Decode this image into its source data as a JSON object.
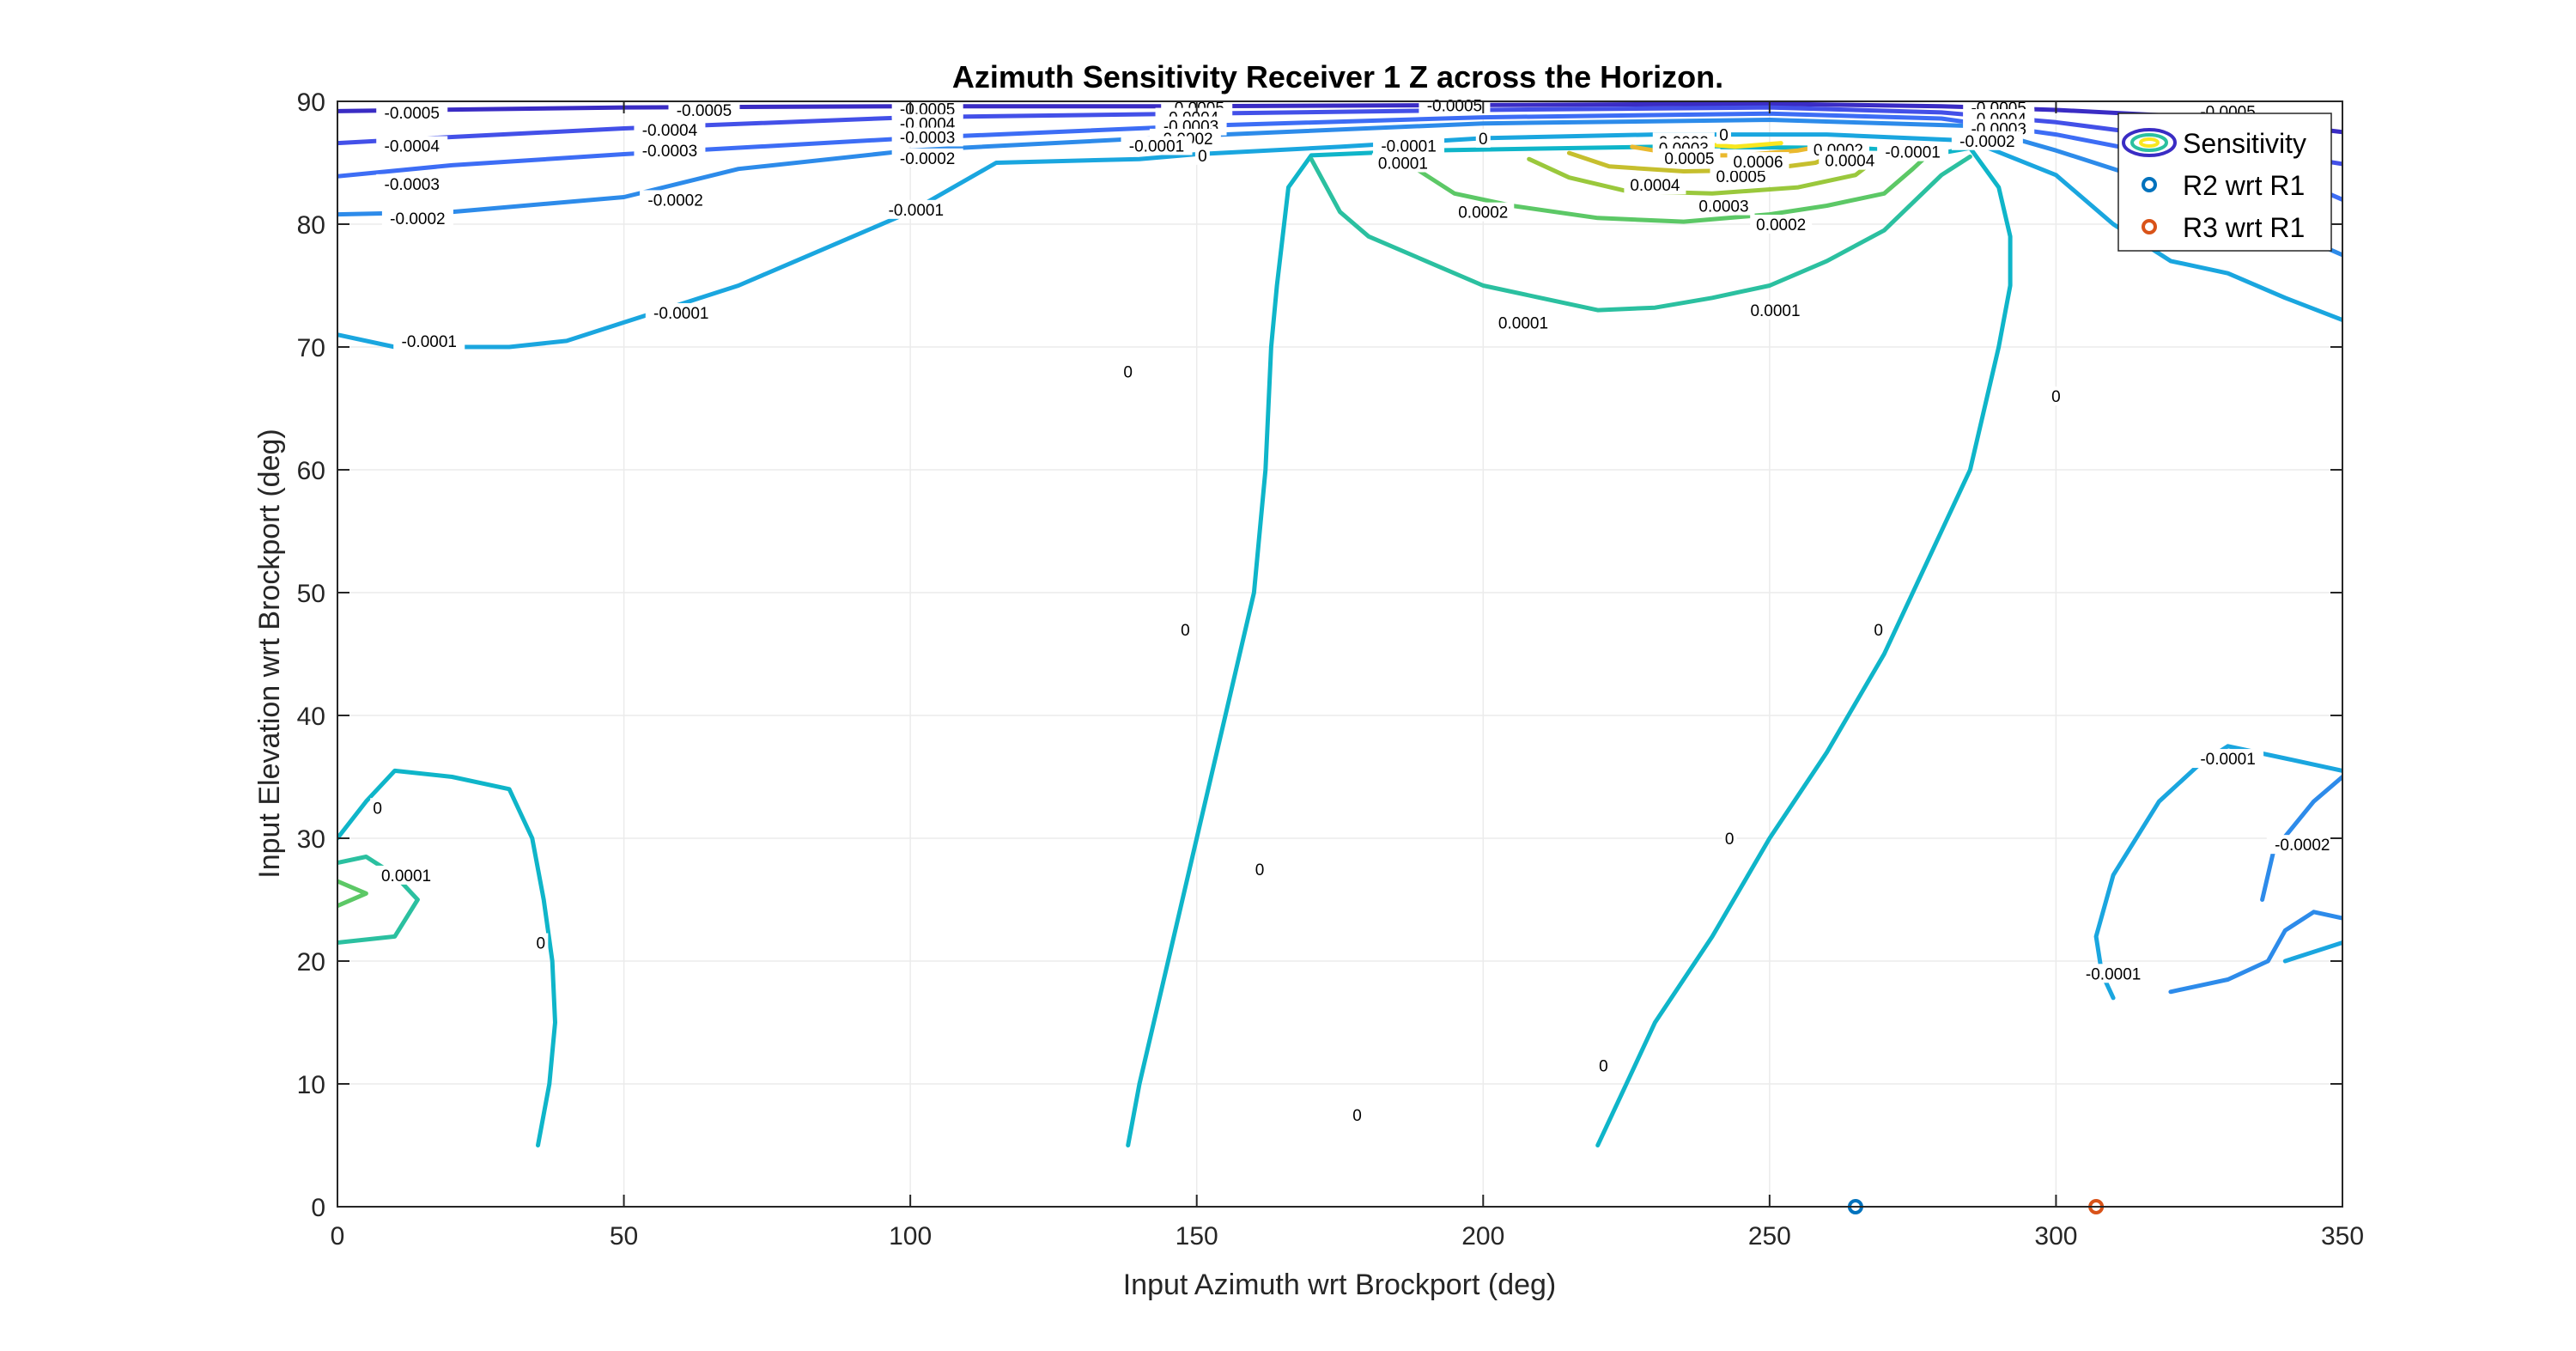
{
  "chart_data": {
    "type": "contour",
    "title": "Azimuth Sensitivity Receiver 1 Z across the Horizon.",
    "xlabel": "Input Azimuth wrt Brockport (deg)",
    "ylabel": "Input Elevation wrt Brockport (deg)",
    "xlim": [
      0,
      350
    ],
    "ylim": [
      0,
      90
    ],
    "xticks": [
      "0",
      "50",
      "100",
      "150",
      "200",
      "250",
      "300",
      "350"
    ],
    "yticks": [
      "0",
      "10",
      "20",
      "30",
      "40",
      "50",
      "60",
      "70",
      "80",
      "90"
    ],
    "grid": true,
    "legend_position": "top-right",
    "legend": [
      "Sensitivity",
      "R2 wrt R1",
      "R3 wrt R1"
    ],
    "colors": {
      "axis": "#262626",
      "grid": "#ebebeb",
      "level_-0.0005": "#3a2cc4",
      "level_-0.0004": "#4350e8",
      "level_-0.0003": "#3d6df5",
      "level_-0.0002": "#2d8bea",
      "level_-0.0001": "#1aa6df",
      "level_0": "#0fb5c9",
      "level_0.0001": "#2bc0a0",
      "level_0.0002": "#5cc866",
      "level_0.0003": "#9ac83c",
      "level_0.0004": "#c6bf2e",
      "level_0.0005": "#eab92e",
      "level_0.0006": "#f9e71f",
      "r2_marker": "#0072bd",
      "r3_marker": "#d95319"
    },
    "contours": [
      {
        "level": "-0.0005",
        "points": [
          [
            0,
            89.2
          ],
          [
            50,
            89.5
          ],
          [
            100,
            89.6
          ],
          [
            150,
            89.6
          ],
          [
            200,
            89.7
          ],
          [
            250,
            89.8
          ],
          [
            280,
            89.6
          ],
          [
            300,
            89.3
          ],
          [
            330,
            88.6
          ],
          [
            350,
            87.5
          ]
        ]
      },
      {
        "level": "-0.0004",
        "points": [
          [
            0,
            86.6
          ],
          [
            20,
            87.1
          ],
          [
            50,
            87.8
          ],
          [
            100,
            88.7
          ],
          [
            150,
            89.0
          ],
          [
            200,
            89.3
          ],
          [
            250,
            89.5
          ],
          [
            280,
            89.1
          ],
          [
            300,
            88.3
          ],
          [
            320,
            87.1
          ],
          [
            350,
            84.9
          ]
        ]
      },
      {
        "level": "-0.0003",
        "points": [
          [
            0,
            83.9
          ],
          [
            20,
            84.8
          ],
          [
            50,
            85.7
          ],
          [
            100,
            87.0
          ],
          [
            150,
            88.0
          ],
          [
            200,
            88.7
          ],
          [
            250,
            89.0
          ],
          [
            280,
            88.6
          ],
          [
            300,
            87.3
          ],
          [
            320,
            85.5
          ],
          [
            340,
            84.0
          ],
          [
            350,
            82.0
          ]
        ]
      },
      {
        "level": "-0.0002",
        "points": [
          [
            0,
            80.8
          ],
          [
            20,
            81.0
          ],
          [
            50,
            82.2
          ],
          [
            70,
            84.5
          ],
          [
            100,
            86.0
          ],
          [
            150,
            87.2
          ],
          [
            200,
            88.2
          ],
          [
            250,
            88.5
          ],
          [
            285,
            88.0
          ],
          [
            300,
            86.0
          ],
          [
            320,
            83.0
          ],
          [
            340,
            79.5
          ],
          [
            350,
            77.5
          ]
        ]
      },
      {
        "level": "-0.0001",
        "points": [
          [
            0,
            71.0
          ],
          [
            10,
            70.0
          ],
          [
            30,
            70.0
          ],
          [
            40,
            70.5
          ],
          [
            50,
            72.0
          ],
          [
            70,
            75.0
          ],
          [
            80,
            77.0
          ],
          [
            100,
            81.0
          ],
          [
            115,
            85.0
          ],
          [
            140,
            85.3
          ],
          [
            150,
            85.7
          ],
          [
            175,
            86.3
          ],
          [
            200,
            87.0
          ],
          [
            230,
            87.3
          ],
          [
            260,
            87.3
          ],
          [
            285,
            86.8
          ],
          [
            300,
            84.0
          ],
          [
            310,
            80.0
          ],
          [
            320,
            77.0
          ],
          [
            330,
            76.0
          ],
          [
            340,
            74.0
          ],
          [
            350,
            72.2
          ]
        ]
      },
      {
        "level": "0",
        "points": [
          [
            138,
            5
          ],
          [
            140,
            10
          ],
          [
            145,
            20
          ],
          [
            150,
            30
          ],
          [
            155,
            40
          ],
          [
            160,
            50
          ],
          [
            162,
            60
          ],
          [
            163,
            70
          ],
          [
            164,
            75
          ],
          [
            166,
            83
          ],
          [
            170,
            85.6
          ],
          [
            190,
            86.0
          ],
          [
            230,
            86.3
          ],
          [
            265,
            86.2
          ],
          [
            280,
            85.8
          ],
          [
            285,
            86.2
          ],
          [
            290,
            83
          ],
          [
            292,
            79
          ],
          [
            292,
            75
          ],
          [
            290,
            70
          ],
          [
            285,
            60
          ],
          [
            280,
            55
          ],
          [
            270,
            45
          ],
          [
            260,
            37
          ],
          [
            250,
            30
          ],
          [
            240,
            22
          ],
          [
            230,
            15
          ],
          [
            225,
            10
          ],
          [
            220,
            5
          ]
        ]
      },
      {
        "level": "0.0001",
        "points": [
          [
            170,
            85.3
          ],
          [
            175,
            81
          ],
          [
            180,
            79
          ],
          [
            190,
            77
          ],
          [
            200,
            75
          ],
          [
            210,
            74
          ],
          [
            220,
            73
          ],
          [
            230,
            73.2
          ],
          [
            240,
            74
          ],
          [
            250,
            75
          ],
          [
            260,
            77
          ],
          [
            270,
            79.5
          ],
          [
            280,
            84
          ],
          [
            285,
            85.5
          ]
        ]
      },
      {
        "level": "0.0002",
        "points": [
          [
            185,
            85.5
          ],
          [
            195,
            82.5
          ],
          [
            205,
            81.5
          ],
          [
            220,
            80.5
          ],
          [
            235,
            80.2
          ],
          [
            250,
            80.8
          ],
          [
            260,
            81.5
          ],
          [
            270,
            82.5
          ],
          [
            275,
            84.5
          ],
          [
            278,
            85.8
          ]
        ]
      },
      {
        "level": "0.0003",
        "points": [
          [
            208,
            85.3
          ],
          [
            215,
            83.8
          ],
          [
            225,
            82.7
          ],
          [
            240,
            82.5
          ],
          [
            255,
            83.0
          ],
          [
            265,
            84.0
          ],
          [
            270,
            85.8
          ]
        ]
      },
      {
        "level": "0.0004",
        "points": [
          [
            215,
            85.8
          ],
          [
            222,
            84.7
          ],
          [
            235,
            84.3
          ],
          [
            248,
            84.4
          ],
          [
            258,
            85.0
          ],
          [
            265,
            86.3
          ]
        ]
      },
      {
        "level": "0.0005",
        "points": [
          [
            226,
            86.3
          ],
          [
            235,
            85.6
          ],
          [
            245,
            85.6
          ],
          [
            255,
            86.0
          ],
          [
            262,
            86.6
          ]
        ]
      },
      {
        "level": "0.0006",
        "points": [
          [
            236,
            86.6
          ],
          [
            244,
            86.3
          ],
          [
            252,
            86.6
          ]
        ]
      },
      {
        "level": "0",
        "points": [
          [
            35,
            5
          ],
          [
            37,
            10
          ],
          [
            38,
            15
          ],
          [
            37.5,
            20
          ],
          [
            36,
            25
          ],
          [
            34,
            30
          ],
          [
            30,
            34
          ],
          [
            20,
            35
          ],
          [
            10,
            35.5
          ],
          [
            5,
            33
          ],
          [
            0,
            30
          ]
        ]
      },
      {
        "level": "0.0001",
        "points": [
          [
            0,
            28
          ],
          [
            5,
            28.5
          ],
          [
            10,
            27
          ],
          [
            14,
            25
          ],
          [
            10,
            22
          ],
          [
            0,
            21.5
          ]
        ]
      },
      {
        "level": "0.0002",
        "points": [
          [
            0,
            26.5
          ],
          [
            5,
            25.5
          ],
          [
            0,
            24.5
          ]
        ]
      },
      {
        "level": "-0.0001",
        "points": [
          [
            310,
            17
          ],
          [
            308,
            19
          ],
          [
            307,
            22
          ],
          [
            310,
            27
          ],
          [
            318,
            33
          ],
          [
            325,
            36
          ],
          [
            330,
            37.5
          ],
          [
            340,
            36.5
          ],
          [
            350,
            35.5
          ]
        ]
      },
      {
        "level": "-0.0002",
        "points": [
          [
            320,
            17.5
          ],
          [
            330,
            18.5
          ],
          [
            337,
            20
          ],
          [
            340,
            22.5
          ],
          [
            345,
            24
          ],
          [
            350,
            23.5
          ]
        ]
      },
      {
        "level": "-0.0002",
        "points": [
          [
            336,
            25
          ],
          [
            338,
            29
          ],
          [
            345,
            33
          ],
          [
            350,
            35
          ]
        ]
      },
      {
        "level": "-0.0001",
        "points": [
          [
            340,
            20
          ],
          [
            350,
            21.5
          ]
        ]
      }
    ],
    "contour_labels": [
      {
        "text": "-0.0005",
        "x": 13,
        "y": 89.1
      },
      {
        "text": "-0.0005",
        "x": 64,
        "y": 89.3
      },
      {
        "text": "-0.0005",
        "x": 103,
        "y": 89.4
      },
      {
        "text": "-0.0005",
        "x": 150,
        "y": 89.5
      },
      {
        "text": "-0.0005",
        "x": 195,
        "y": 89.7
      },
      {
        "text": "-0.0005",
        "x": 290,
        "y": 89.5
      },
      {
        "text": "-0.0005",
        "x": 330,
        "y": 89.2
      },
      {
        "text": "-0.0004",
        "x": 13,
        "y": 86.4
      },
      {
        "text": "-0.0004",
        "x": 58,
        "y": 87.7
      },
      {
        "text": "-0.0004",
        "x": 103,
        "y": 88.2
      },
      {
        "text": "-0.0004",
        "x": 149,
        "y": 88.7
      },
      {
        "text": "-0.0004",
        "x": 290,
        "y": 88.6
      },
      {
        "text": "-0.0003",
        "x": 13,
        "y": 83.3
      },
      {
        "text": "-0.0003",
        "x": 58,
        "y": 86.0
      },
      {
        "text": "-0.0003",
        "x": 103,
        "y": 87.1
      },
      {
        "text": "-0.0003",
        "x": 149,
        "y": 88.0
      },
      {
        "text": "-0.0003",
        "x": 290,
        "y": 87.8
      },
      {
        "text": "-0.0002",
        "x": 14,
        "y": 80.5
      },
      {
        "text": "-0.0002",
        "x": 59,
        "y": 82.0
      },
      {
        "text": "-0.0002",
        "x": 103,
        "y": 85.4
      },
      {
        "text": "-0.0002",
        "x": 148,
        "y": 87.0
      },
      {
        "text": "-0.0002",
        "x": 288,
        "y": 86.8
      },
      {
        "text": "-0.0001",
        "x": 16,
        "y": 70.5
      },
      {
        "text": "-0.0001",
        "x": 60,
        "y": 72.8
      },
      {
        "text": "-0.0001",
        "x": 101,
        "y": 81.2
      },
      {
        "text": "-0.0001",
        "x": 143,
        "y": 86.4
      },
      {
        "text": "-0.0001",
        "x": 187,
        "y": 86.4
      },
      {
        "text": "-0.0001",
        "x": 275,
        "y": 85.9
      },
      {
        "text": "0",
        "x": 151,
        "y": 85.6
      },
      {
        "text": "0",
        "x": 200,
        "y": 87.0
      },
      {
        "text": "0",
        "x": 242,
        "y": 87.3
      },
      {
        "text": "0",
        "x": 138,
        "y": 68.0
      },
      {
        "text": "0",
        "x": 148,
        "y": 47.0
      },
      {
        "text": "0",
        "x": 161,
        "y": 27.5
      },
      {
        "text": "0",
        "x": 178,
        "y": 7.5
      },
      {
        "text": "0",
        "x": 300,
        "y": 66.0
      },
      {
        "text": "0",
        "x": 269,
        "y": 47.0
      },
      {
        "text": "0",
        "x": 243,
        "y": 30.0
      },
      {
        "text": "0",
        "x": 221,
        "y": 11.5
      },
      {
        "text": "0",
        "x": 7,
        "y": 32.5
      },
      {
        "text": "0",
        "x": 35.5,
        "y": 21.5
      },
      {
        "text": "0.0001",
        "x": 186,
        "y": 85.0
      },
      {
        "text": "0.0001",
        "x": 207,
        "y": 72.0
      },
      {
        "text": "0.0001",
        "x": 251,
        "y": 73.0
      },
      {
        "text": "0.0002",
        "x": 200,
        "y": 81.0
      },
      {
        "text": "0.0002",
        "x": 252,
        "y": 80.0
      },
      {
        "text": "0.0002",
        "x": 235,
        "y": 86.7
      },
      {
        "text": "0.0002",
        "x": 262,
        "y": 86.1
      },
      {
        "text": "0.0003",
        "x": 235,
        "y": 86.2
      },
      {
        "text": "0.0003",
        "x": 242,
        "y": 81.5
      },
      {
        "text": "0.0004",
        "x": 230,
        "y": 83.2
      },
      {
        "text": "0.0004",
        "x": 264,
        "y": 85.2
      },
      {
        "text": "0.0005",
        "x": 236,
        "y": 85.4
      },
      {
        "text": "0.0005",
        "x": 245,
        "y": 83.9
      },
      {
        "text": "0.0006",
        "x": 248,
        "y": 85.1
      },
      {
        "text": "0.0001",
        "x": 12,
        "y": 27.0
      },
      {
        "text": "-0.0001",
        "x": 330,
        "y": 36.5
      },
      {
        "text": "-0.0001",
        "x": 310,
        "y": 19.0
      },
      {
        "text": "-0.0002",
        "x": 343,
        "y": 29.5
      },
      {
        "text": "-0.0001",
        "x": 340,
        "y": 78.5
      }
    ],
    "points": [
      {
        "name": "R2 wrt R1",
        "x": 265,
        "y": 0
      },
      {
        "name": "R3 wrt R1",
        "x": 307,
        "y": 0
      }
    ]
  }
}
